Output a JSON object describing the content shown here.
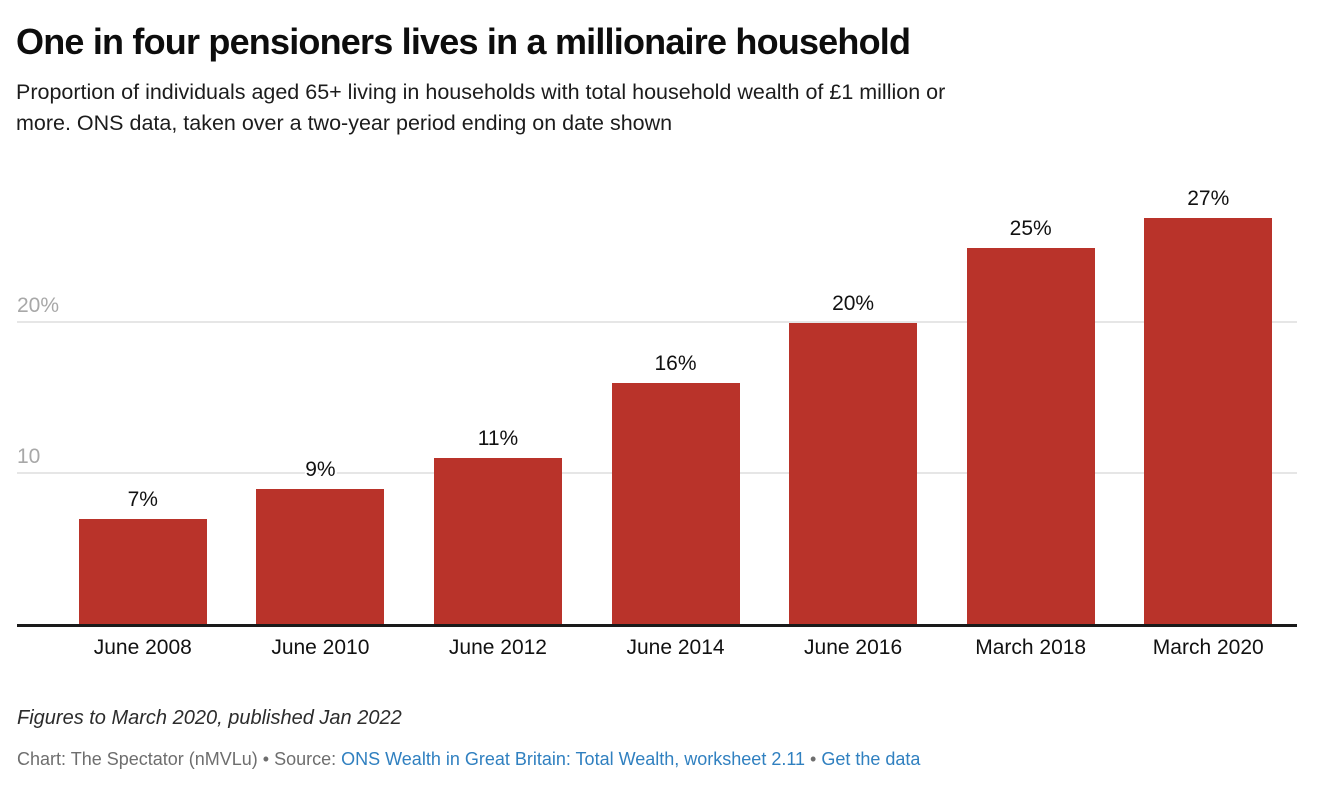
{
  "header": {
    "subtitle_line1": "Proportion of individuals aged 65+ living in households with total household wealth of £1 million or",
    "subtitle_line2": "more. ONS data, taken over a two-year period ending on date shown"
  },
  "chart_data": {
    "type": "bar",
    "title": "One in four pensioners lives in a millionaire household",
    "subtitle": "Proportion of individuals aged 65+ living in households with total household wealth of £1 million or more. ONS data, taken over a two-year period ending on date shown",
    "categories": [
      "June 2008",
      "June 2010",
      "June 2012",
      "June 2014",
      "June 2016",
      "March 2018",
      "March 2020"
    ],
    "values": [
      7,
      9,
      11,
      16,
      20,
      25,
      27
    ],
    "value_labels": [
      "7%",
      "9%",
      "11%",
      "16%",
      "20%",
      "25%",
      "27%"
    ],
    "xlabel": "",
    "ylabel": "",
    "ylim": [
      0,
      29
    ],
    "gridlines": [
      {
        "value": 10,
        "label": "10"
      },
      {
        "value": 20,
        "label": "20%"
      }
    ],
    "grid": "horizontal",
    "legend_position": "none",
    "bar_color": "#b9332a"
  },
  "footer": {
    "note": "Figures to March 2020, published Jan 2022",
    "attribution_prefix": "Chart: The Spectator (nMVLu) • Source: ",
    "source_link": "ONS Wealth in Great Britain: Total Wealth, worksheet 2.11",
    "separator": " • ",
    "get_data_link": "Get the data"
  },
  "colors": {
    "bar": "#b9332a",
    "link": "#3080c0",
    "gridline": "#e6e6e6",
    "axis_label": "#a8a8a8",
    "baseline": "#1a1a1a"
  }
}
